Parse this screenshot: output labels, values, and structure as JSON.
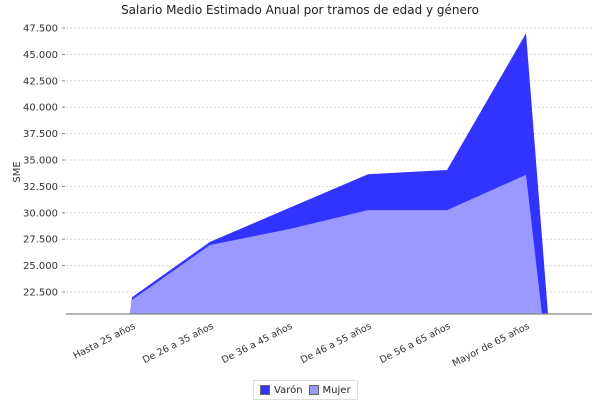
{
  "chart_data": {
    "type": "area",
    "title": "Salario Medio Estimado Anual por tramos de edad y género",
    "xlabel": "",
    "ylabel": "SME",
    "ylim": [
      20400,
      48500
    ],
    "yticks": [
      22500,
      25000,
      27500,
      30000,
      32500,
      35000,
      37500,
      40000,
      42500,
      45000,
      47500
    ],
    "ytick_labels": [
      "22.500",
      "25.000",
      "27.500",
      "30.000",
      "32.500",
      "35.000",
      "37.500",
      "40.000",
      "42.500",
      "45.000",
      "47.500"
    ],
    "categories": [
      "Hasta 25 años",
      "De 26 a 35 años",
      "De 36 a 45 años",
      "De 46 a 55 años",
      "De 56 a 65 años",
      "Mayor de 65 años"
    ],
    "series": [
      {
        "name": "Varón",
        "color": "#3333ff",
        "values": [
          22000,
          27250,
          30450,
          33650,
          34050,
          47000
        ]
      },
      {
        "name": "Mujer",
        "color": "#9999ff",
        "values": [
          21750,
          26950,
          28450,
          30250,
          30250,
          33600
        ]
      }
    ],
    "grid": true,
    "legend_position": "bottom"
  },
  "legend": {
    "items": [
      {
        "label": "Varón",
        "color": "#3333ff"
      },
      {
        "label": "Mujer",
        "color": "#9999ff"
      }
    ]
  }
}
